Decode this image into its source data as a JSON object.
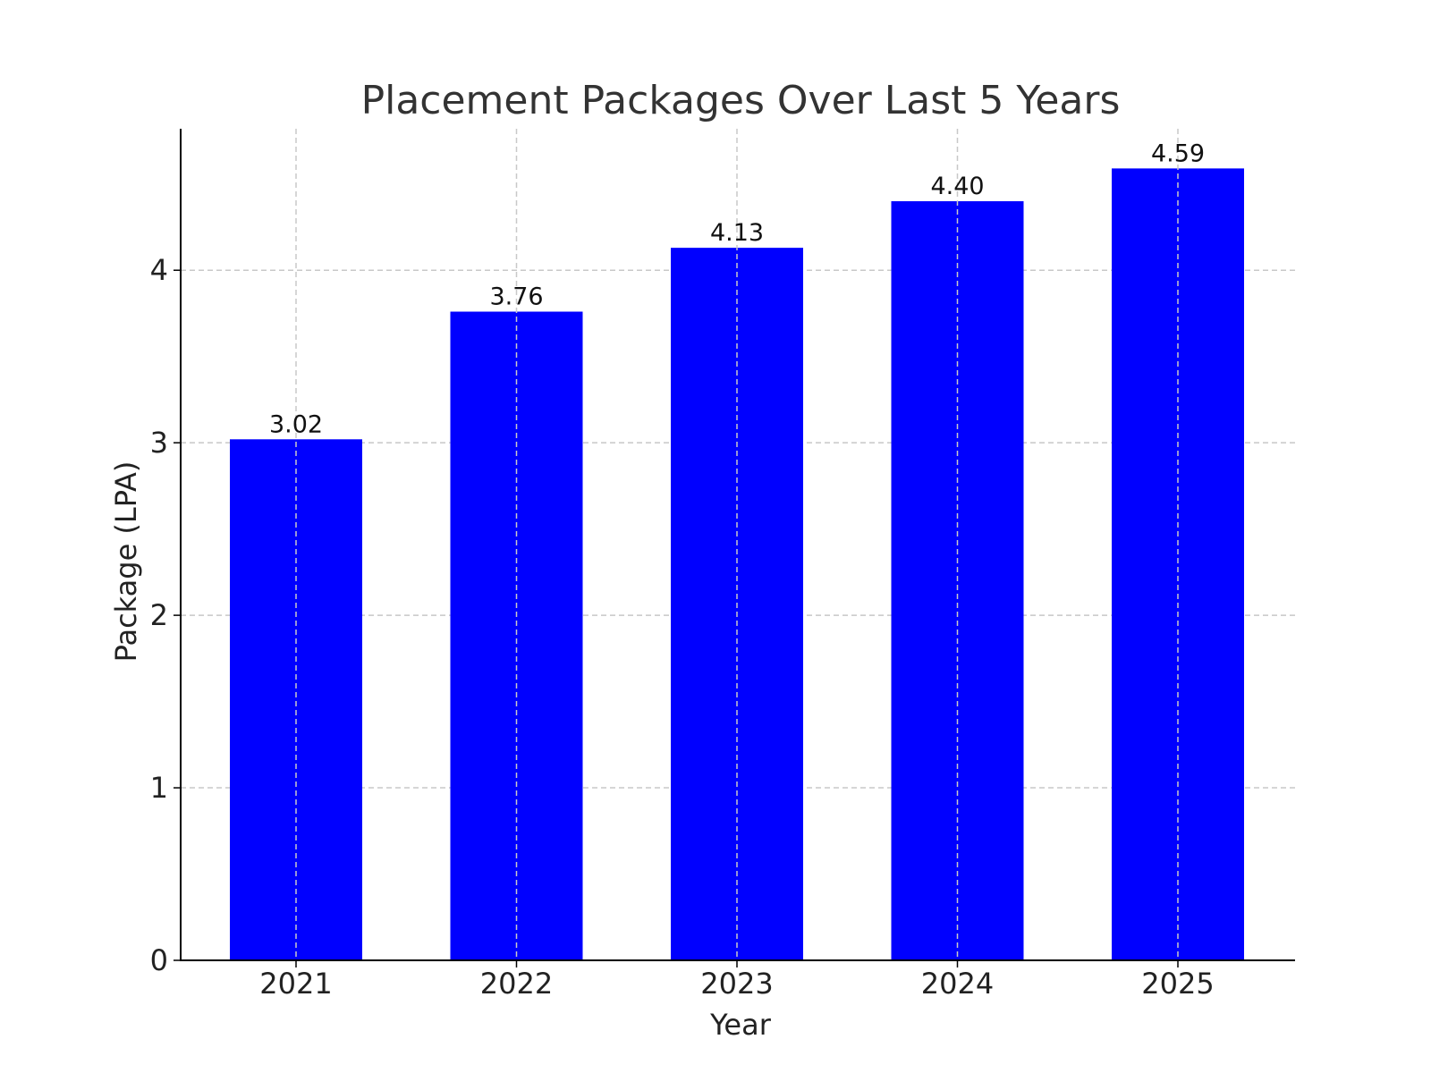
{
  "chart_data": {
    "type": "bar",
    "title": "Placement Packages Over Last 5 Years",
    "xlabel": "Year",
    "ylabel": "Package (LPA)",
    "categories": [
      "2021",
      "2022",
      "2023",
      "2024",
      "2025"
    ],
    "values": [
      3.02,
      3.76,
      4.13,
      4.4,
      4.59
    ],
    "data_labels": [
      "3.02",
      "3.76",
      "4.13",
      "4.40",
      "4.59"
    ],
    "yticks": [
      0,
      1,
      2,
      3,
      4
    ],
    "ylim": [
      0,
      4.82
    ],
    "grid": true,
    "bar_color": "#0000ff",
    "grid_color": "#c8c8c8",
    "axis_color": "#000000"
  }
}
